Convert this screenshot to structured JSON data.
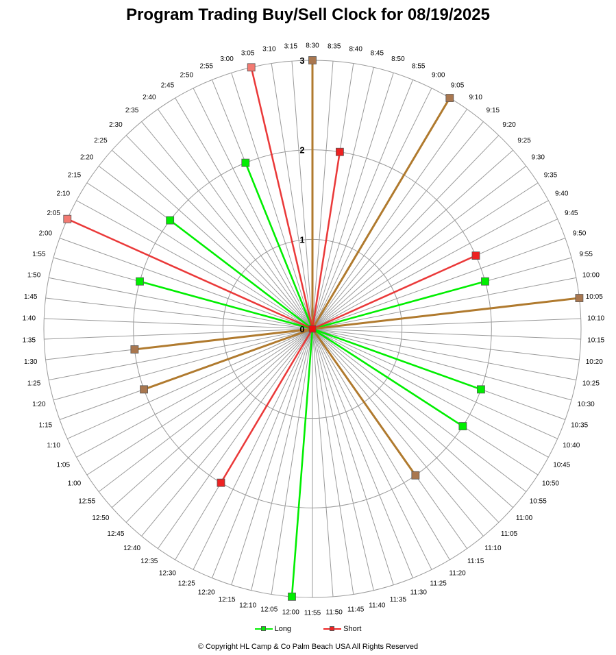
{
  "chart_data": {
    "type": "radar",
    "title": "Program Trading Buy/Sell Clock  for  08/19/2025",
    "radial_range": [
      0,
      3
    ],
    "radial_ticks": [
      "0",
      "1",
      "2",
      "3"
    ],
    "grid": true,
    "legend_position": "bottom",
    "categories": [
      "8:30",
      "8:35",
      "8:40",
      "8:45",
      "8:50",
      "8:55",
      "9:00",
      "9:05",
      "9:10",
      "9:15",
      "9:20",
      "9:25",
      "9:30",
      "9:35",
      "9:40",
      "9:45",
      "9:50",
      "9:55",
      "10:00",
      "10:05",
      "10:10",
      "10:15",
      "10:20",
      "10:25",
      "10:30",
      "10:35",
      "10:40",
      "10:45",
      "10:50",
      "10:55",
      "11:00",
      "11:05",
      "11:10",
      "11:15",
      "11:20",
      "11:25",
      "11:30",
      "11:35",
      "11:40",
      "11:45",
      "11:50",
      "11:55",
      "12:00",
      "12:05",
      "12:10",
      "12:15",
      "12:20",
      "12:25",
      "12:30",
      "12:35",
      "12:40",
      "12:45",
      "12:50",
      "12:55",
      "1:00",
      "1:05",
      "1:10",
      "1:15",
      "1:20",
      "1:25",
      "1:30",
      "1:35",
      "1:40",
      "1:45",
      "1:50",
      "1:55",
      "2:00",
      "2:05",
      "2:10",
      "2:15",
      "2:20",
      "2:25",
      "2:30",
      "2:35",
      "2:40",
      "2:45",
      "2:50",
      "2:55",
      "3:00",
      "3:05",
      "3:10",
      "3:15"
    ],
    "series": [
      {
        "name": "Long",
        "color": "#00ee00",
        "points": [
          {
            "time": "8:30",
            "value": 3
          },
          {
            "time": "9:05",
            "value": 3
          },
          {
            "time": "9:55",
            "value": 2
          },
          {
            "time": "10:05",
            "value": 3
          },
          {
            "time": "10:35",
            "value": 2
          },
          {
            "time": "10:50",
            "value": 2
          },
          {
            "time": "11:15",
            "value": 2
          },
          {
            "time": "12:00",
            "value": 3
          },
          {
            "time": "1:15",
            "value": 2
          },
          {
            "time": "1:30",
            "value": 2
          },
          {
            "time": "1:55",
            "value": 2
          },
          {
            "time": "2:20",
            "value": 2
          },
          {
            "time": "2:55",
            "value": 2
          }
        ]
      },
      {
        "name": "Short",
        "color": "#ee2222",
        "points": [
          {
            "time": "8:30",
            "value": 3
          },
          {
            "time": "8:40",
            "value": 2
          },
          {
            "time": "9:05",
            "value": 3
          },
          {
            "time": "9:45",
            "value": 2
          },
          {
            "time": "10:05",
            "value": 3
          },
          {
            "time": "11:15",
            "value": 2
          },
          {
            "time": "12:30",
            "value": 2
          },
          {
            "time": "1:15",
            "value": 2
          },
          {
            "time": "1:30",
            "value": 2
          },
          {
            "time": "2:05",
            "value": 3
          },
          {
            "time": "3:05",
            "value": 3
          }
        ]
      }
    ]
  },
  "footer": {
    "copyright": "© Copyright  HL Camp & Co  Palm Beach  USA  All Rights Reserved"
  }
}
